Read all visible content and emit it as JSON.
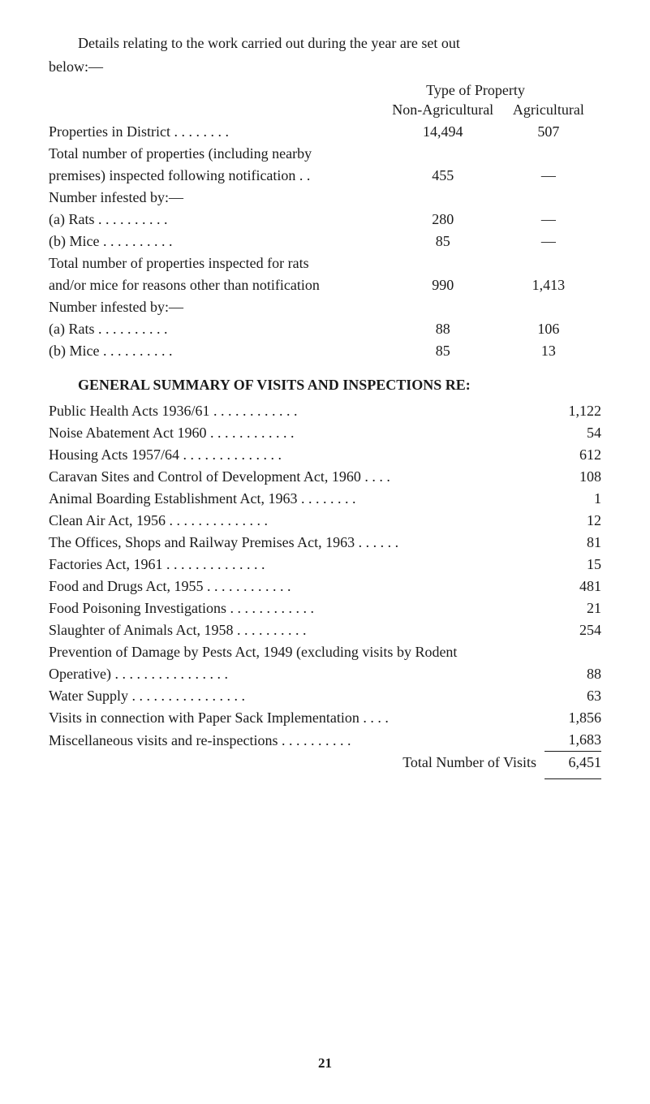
{
  "intro_line1": "Details relating to the work carried out during the year are set out",
  "intro_line2": "below:—",
  "header_top": "Type of Property",
  "header_col1": "Non-Agricultural",
  "header_col2": "Agricultural",
  "section1_rows": [
    {
      "label": "Properties in District   . .       . .       . .       . .",
      "c1": "14,494",
      "c2": "507",
      "indent": false
    },
    {
      "label": "Total number of properties (including nearby",
      "c1": "",
      "c2": "",
      "indent": false
    },
    {
      "label": "premises) inspected following notification  . .",
      "c1": "455",
      "c2": "—",
      "indent": true
    },
    {
      "label": "Number infested by:—",
      "c1": "",
      "c2": "",
      "indent": false
    },
    {
      "label": "(a) Rats            . .       . .       . .       . .       . .",
      "c1": "280",
      "c2": "—",
      "indent": true
    },
    {
      "label": "(b) Mice            . .       . .       . .       . .       . .",
      "c1": "85",
      "c2": "—",
      "indent": true
    },
    {
      "label": "Total number of properties inspected for rats",
      "c1": "",
      "c2": "",
      "indent": false
    },
    {
      "label": "and/or mice for reasons other than notification",
      "c1": "990",
      "c2": "1,413",
      "indent": true
    },
    {
      "label": "Number infested by:—",
      "c1": "",
      "c2": "",
      "indent": false
    },
    {
      "label": "(a) Rats            . .       . .       . .       . .       . .",
      "c1": "88",
      "c2": "106",
      "indent": true
    },
    {
      "label": "(b) Mice            . .       . .       . .       . .       . .",
      "c1": "85",
      "c2": "13",
      "indent": true
    }
  ],
  "section2_title": "GENERAL SUMMARY OF VISITS AND INSPECTIONS RE:",
  "section2_rows": [
    {
      "label": "Public Health Acts 1936/61       . .       . .       . .       . .       . .       . .",
      "val": "1,122",
      "indent": false
    },
    {
      "label": "Noise Abatement Act 1960         . .       . .       . .       . .       . .       . .",
      "val": "54",
      "indent": false
    },
    {
      "label": "Housing Acts 1957/64     . .       . .       . .       . .       . .       . .       . .",
      "val": "612",
      "indent": false
    },
    {
      "label": "Caravan Sites and Control of Development Act, 1960     . .       . .",
      "val": "108",
      "indent": false
    },
    {
      "label": "Animal Boarding Establishment Act, 1963    . .       . .       . .       . .",
      "val": "1",
      "indent": false
    },
    {
      "label": "Clean Air Act, 1956      . .       . .       . .       . .       . .       . .       . .",
      "val": "12",
      "indent": false
    },
    {
      "label": "The Offices, Shops and Railway Premises Act, 1963 . .      . .       . .",
      "val": "81",
      "indent": false
    },
    {
      "label": "Factories Act, 1961      . .       . .       . .       . .       . .       . .       . .",
      "val": "15",
      "indent": false
    },
    {
      "label": "Food and Drugs Act, 1955         . .       . .       . .       . .       . .       . .",
      "val": "481",
      "indent": false
    },
    {
      "label": "Food Poisoning Investigations    . .       . .       . .       . .       . .       . .",
      "val": "21",
      "indent": false
    },
    {
      "label": "Slaughter of Animals Act, 1958           . .       . .       . .       . .       . .",
      "val": "254",
      "indent": false
    },
    {
      "label": "Prevention of Damage by Pests Act, 1949 (excluding visits by Rodent",
      "val": "",
      "indent": false
    },
    {
      "label": "Operative)       . .       . .       . .       . .       . .       . .       . .       . .",
      "val": "88",
      "indent": true
    },
    {
      "label": "Water Supply         . .       . .       . .       . .       . .       . .       . .       . .",
      "val": "63",
      "indent": false
    },
    {
      "label": "Visits in connection with Paper Sack Implementation      . .       . .",
      "val": "1,856",
      "indent": false
    },
    {
      "label": "Miscellaneous visits and re-inspections . .       . .       . .       . .       . .",
      "val": "1,683",
      "indent": false
    }
  ],
  "total_label": "Total Number of Visits",
  "total_value": "6,451",
  "page_number": "21"
}
